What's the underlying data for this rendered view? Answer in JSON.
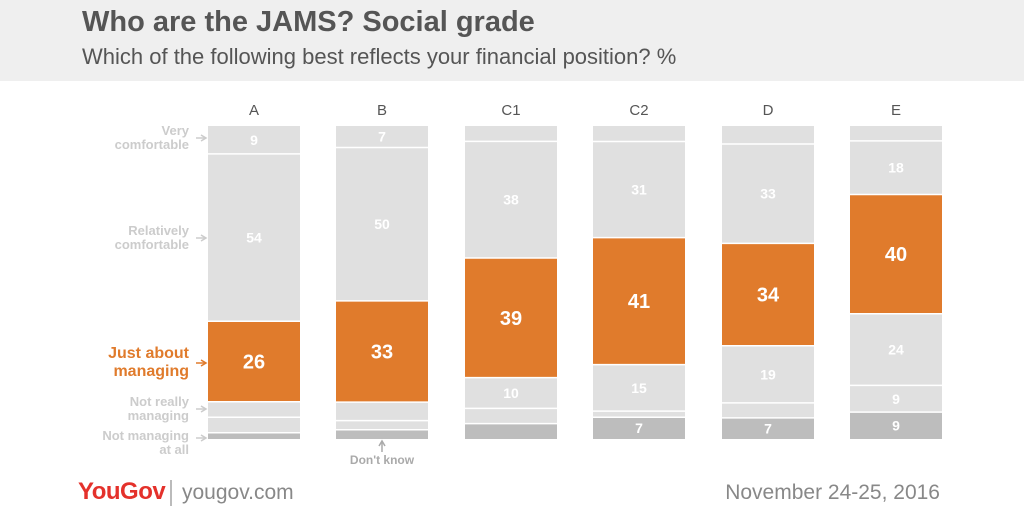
{
  "header": {
    "title": "Who are the JAMS? Social grade",
    "subtitle": "Which of the following best reflects your financial position? %"
  },
  "footer": {
    "logo": "YouGov",
    "site": "yougov.com",
    "date": "November 24-25, 2016"
  },
  "chart_data": {
    "type": "bar",
    "stacked": true,
    "orientation": "vertical",
    "categories": [
      "A",
      "B",
      "C1",
      "C2",
      "D",
      "E"
    ],
    "series": [
      {
        "name": "Very comfortable",
        "color": "#e0e0e0",
        "values": [
          9,
          7,
          5,
          5,
          6,
          5
        ]
      },
      {
        "name": "Relatively comfortable",
        "color": "#e0e0e0",
        "values": [
          54,
          50,
          38,
          31,
          33,
          18
        ]
      },
      {
        "name": "Just about managing",
        "color": "#e07b2c",
        "values": [
          26,
          33,
          39,
          41,
          34,
          40
        ]
      },
      {
        "name": "Not really managing",
        "color": "#e0e0e0",
        "values": [
          5,
          6,
          10,
          15,
          19,
          24
        ]
      },
      {
        "name": "Not managing at all",
        "color": "#e0e0e0",
        "values": [
          5,
          3,
          5,
          2,
          5,
          9
        ]
      },
      {
        "name": "Don't know",
        "color": "#bdbdbd",
        "values": [
          2,
          3,
          5,
          7,
          7,
          9
        ]
      }
    ],
    "shown_labels": [
      [
        "9",
        "54",
        "26",
        "",
        "",
        ""
      ],
      [
        "7",
        "50",
        "33",
        "",
        "",
        ""
      ],
      [
        "",
        "38",
        "39",
        "10",
        "",
        ""
      ],
      [
        "",
        "31",
        "41",
        "15",
        "",
        "7"
      ],
      [
        "",
        "33",
        "34",
        "19",
        "",
        "7"
      ],
      [
        "",
        "18",
        "40",
        "24",
        "9",
        "9"
      ]
    ],
    "row_labels": [
      "Very comfortable",
      "Relatively comfortable",
      "Just about managing",
      "Not really managing",
      "Not managing at all"
    ],
    "dont_know_label": "Don't know",
    "ylim": [
      0,
      100
    ],
    "highlight_color": "#e07b2c",
    "grid": false
  }
}
